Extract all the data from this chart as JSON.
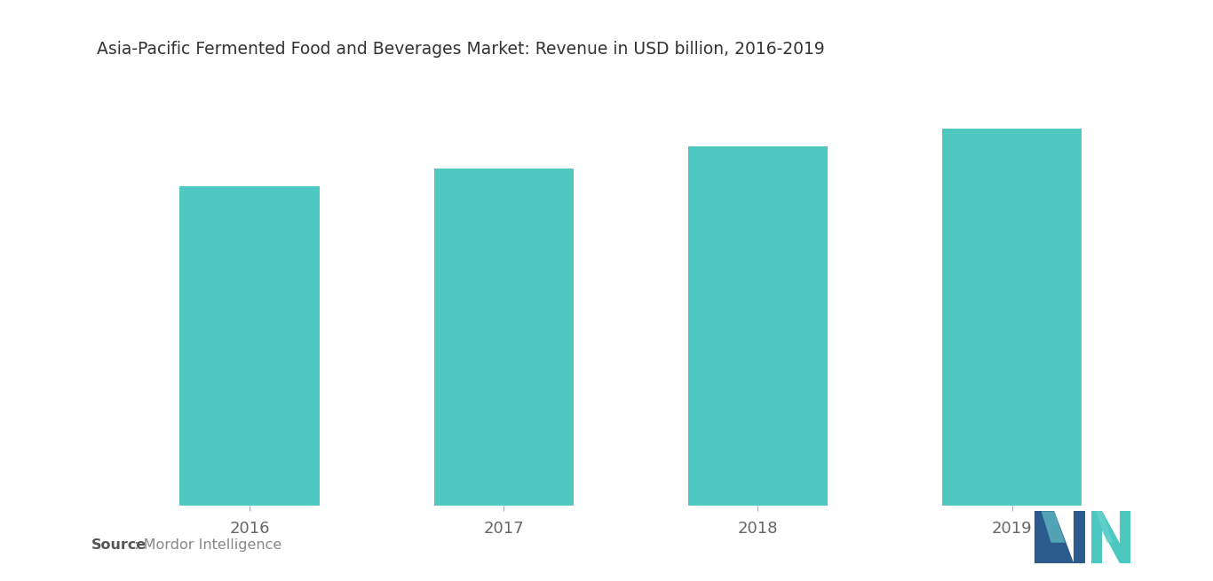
{
  "title": "Asia-Pacific Fermented Food and Beverages Market: Revenue in USD billion, 2016-2019",
  "categories": [
    "2016",
    "2017",
    "2018",
    "2019"
  ],
  "values": [
    0.72,
    0.76,
    0.81,
    0.85
  ],
  "bar_color": "#4EC8C1",
  "background_color": "#ffffff",
  "title_fontsize": 13.5,
  "tick_fontsize": 13,
  "source_bold": "Source",
  "source_text": " : Mordor Intelligence",
  "source_fontsize": 11.5,
  "ylim": [
    0,
    0.97
  ],
  "bar_width": 0.55,
  "logo_dark_blue": "#2B5A8C",
  "logo_teal": "#4DC8C0",
  "logo_light_teal": "#6DD5D0"
}
